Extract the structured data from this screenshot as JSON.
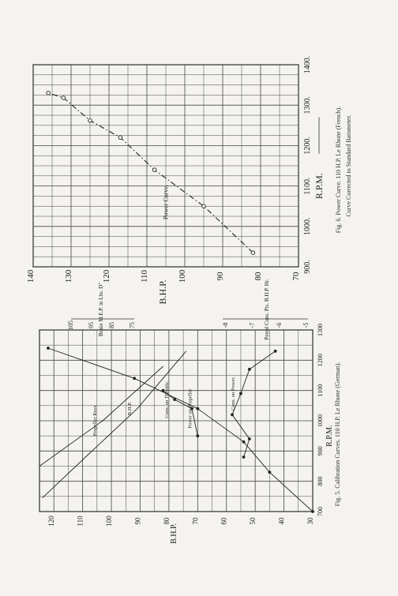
{
  "page": {
    "fig6_caption_line1": "Fig. 6.  Power Curve.  110 H.P. Le Rhone (French).",
    "fig6_caption_line2": "Curve Corrected to Standard Barometer.",
    "fig5_caption": "Fig. 5.  Calibration Curves.  110 H.P. Le Rhone (German)."
  },
  "chart_data": [
    {
      "id": "fig6",
      "type": "line",
      "title": "",
      "xlabel": "R.P.M.",
      "ylabel": "B.H.P.",
      "xlim": [
        900,
        1400
      ],
      "ylim": [
        70,
        140
      ],
      "x_ticks": [
        "900.",
        "1000.",
        "1100.",
        "1200.",
        "1300.",
        "1400."
      ],
      "y_ticks": [
        "70",
        "80",
        "90",
        "100",
        "110",
        "120",
        "130",
        "140"
      ],
      "grid": true,
      "annotations": [
        "Power Curve."
      ],
      "series": [
        {
          "name": "Power Curve.",
          "x": [
            935,
            1050,
            1140,
            1220,
            1262,
            1318,
            1330
          ],
          "y": [
            82,
            95,
            108,
            117,
            125,
            132,
            136
          ]
        }
      ]
    },
    {
      "id": "fig5",
      "type": "line",
      "title": "",
      "xlabel": "R.P.M.",
      "ylabel": "B.H.P.",
      "right_axis_brake": "Brake M.E.P. in Lbs. D\"",
      "right_axis_petrol": "Petrol Cons. Pts. B.H.P. Hr.",
      "xlim": [
        700,
        1300
      ],
      "ylim": [
        30,
        125
      ],
      "x_ticks": [
        "700",
        "800",
        "900",
        "1000",
        "1100",
        "1200",
        "1300"
      ],
      "y_ticks": [
        "30",
        "40",
        "50",
        "60",
        "70",
        "80",
        "90",
        "100",
        "110",
        "120"
      ],
      "brake_ticks": [
        "75",
        "85",
        "95",
        "105"
      ],
      "petrol_ticks": [
        "-5",
        "-6",
        "-7",
        "-8"
      ],
      "grid": true,
      "series": [
        {
          "name": "Power on Propeller",
          "x": [
            700,
            830,
            930,
            1040,
            1140,
            1240
          ],
          "y": [
            30,
            45,
            54,
            70,
            92,
            122
          ]
        },
        {
          "name": "B.H.P.",
          "x": [
            745,
            880,
            1040,
            1230
          ],
          "y": [
            124,
            109,
            91,
            74
          ]
        },
        {
          "name": "Propeller Revs",
          "x": [
            850,
            1000,
            1180
          ],
          "y": [
            125,
            103,
            82
          ]
        },
        {
          "name": "Cons. on Throttle.",
          "x": [
            950,
            1040,
            1070,
            1100
          ],
          "y": [
            70,
            72,
            78,
            82
          ]
        },
        {
          "name": "Cons. on Power.",
          "x": [
            880,
            940,
            1020,
            1090,
            1170,
            1230
          ],
          "y": [
            54,
            52,
            58,
            55,
            52,
            43
          ]
        }
      ]
    }
  ]
}
